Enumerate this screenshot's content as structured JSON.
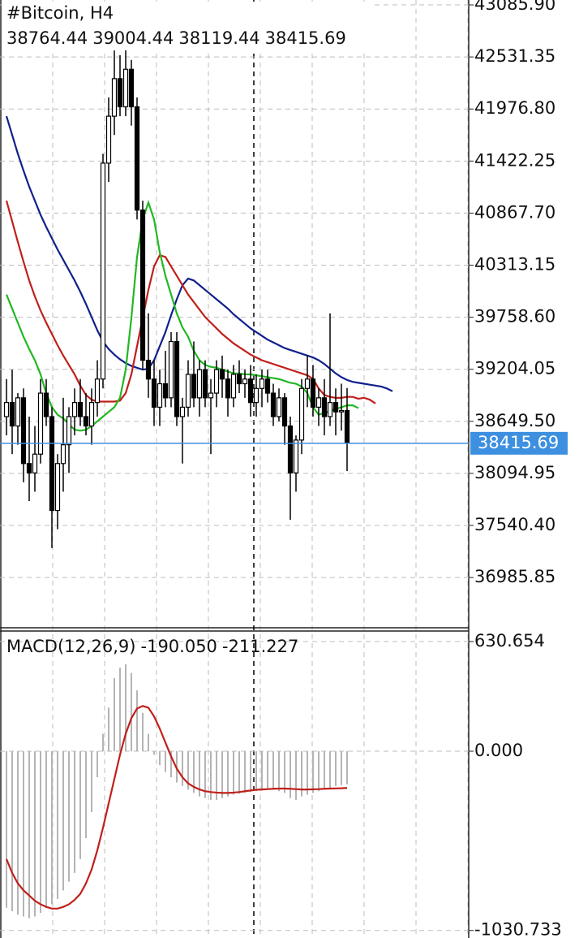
{
  "chart_data": [
    {
      "type": "candlestick",
      "title": "#Bitcoin, H4",
      "ohlc_text": [
        "38764.44",
        "39004.44",
        "38119.44",
        "38415.69"
      ],
      "ylim": [
        36433,
        43138
      ],
      "yticks": [
        {
          "value": 43085.9,
          "label": "43085.90"
        },
        42531.35,
        {
          "value": 41976.8,
          "label": "41976.80"
        },
        41422.25,
        {
          "value": 40867.7,
          "label": "40867.70"
        },
        40313.15,
        {
          "value": 39758.6,
          "label": "39758.60"
        },
        39204.05,
        {
          "value": 38649.5,
          "label": "38649.50"
        },
        38094.95,
        {
          "value": 37540.4,
          "label": "37540.40"
        },
        36985.85
      ],
      "grid": true,
      "last_price": 38415.69,
      "last_price_color": "#3d8fe0",
      "open": [
        38700,
        38850,
        38600,
        38900,
        38200,
        38100,
        38300,
        38950,
        38700,
        37700,
        38200,
        38400,
        38700,
        38850,
        38700,
        38600,
        38850,
        39100,
        41400,
        41900,
        42300,
        42000,
        42400,
        42000,
        40900,
        39300,
        39100,
        38800,
        39050,
        38900,
        39500,
        38700,
        38800,
        39150,
        38900,
        39200,
        38900,
        38950,
        39200,
        39100,
        38900,
        39150,
        39050,
        39100,
        38850,
        39000,
        39100,
        38950,
        38700,
        38900,
        38600,
        38100,
        38450,
        39000,
        39100,
        38800,
        38900,
        38700,
        38850,
        38750,
        38764.44
      ],
      "high": [
        39100,
        39200,
        38950,
        39000,
        38700,
        38600,
        39100,
        39100,
        38800,
        38300,
        38900,
        38800,
        39000,
        39100,
        38950,
        39000,
        39300,
        41500,
        42100,
        42600,
        42550,
        42650,
        42500,
        42100,
        41000,
        39800,
        39300,
        39200,
        39400,
        39600,
        39600,
        38900,
        39300,
        39500,
        39300,
        39300,
        39100,
        39300,
        39350,
        39200,
        39250,
        39300,
        39200,
        39250,
        39150,
        39200,
        39200,
        39050,
        39000,
        38950,
        38700,
        38500,
        39100,
        39350,
        39250,
        39000,
        39100,
        39800,
        39000,
        39050,
        39004.44
      ],
      "low": [
        38500,
        38300,
        38400,
        38000,
        37800,
        37900,
        38200,
        38600,
        37300,
        37500,
        37900,
        38100,
        38500,
        38600,
        38500,
        38400,
        38700,
        39000,
        41200,
        41700,
        41900,
        41900,
        41800,
        40800,
        39200,
        38900,
        38600,
        38600,
        38800,
        38800,
        38600,
        38200,
        38700,
        38800,
        38700,
        38800,
        38300,
        38800,
        38900,
        38700,
        38800,
        38950,
        38900,
        38700,
        38700,
        38800,
        38850,
        38600,
        38650,
        38400,
        37600,
        37900,
        38300,
        38800,
        38700,
        38600,
        38500,
        38600,
        38500,
        38550,
        38119.44
      ],
      "close": [
        38850,
        38600,
        38900,
        38200,
        38100,
        38300,
        38950,
        38700,
        37700,
        38200,
        38400,
        38700,
        38850,
        38700,
        38600,
        38850,
        39100,
        41400,
        41900,
        42300,
        42000,
        42400,
        42000,
        40900,
        39300,
        39100,
        38800,
        39050,
        38900,
        39500,
        38700,
        38800,
        39150,
        38900,
        39200,
        38900,
        38950,
        39200,
        39100,
        38900,
        39150,
        39050,
        39100,
        38850,
        39000,
        39100,
        38950,
        38700,
        38900,
        38600,
        38100,
        38450,
        39000,
        39100,
        38800,
        38900,
        38700,
        38850,
        38750,
        38764,
        38415.69
      ],
      "series": [
        {
          "color": "#10208c",
          "values": [
            41900,
            41700,
            41500,
            41320,
            41150,
            41000,
            40850,
            40720,
            40600,
            40480,
            40370,
            40260,
            40150,
            40030,
            39900,
            39760,
            39620,
            39500,
            39420,
            39360,
            39310,
            39270,
            39240,
            39220,
            39200,
            39210,
            39300,
            39450,
            39600,
            39780,
            39950,
            40100,
            40170,
            40150,
            40100,
            40050,
            40000,
            39950,
            39900,
            39850,
            39790,
            39740,
            39690,
            39640,
            39600,
            39560,
            39520,
            39490,
            39460,
            39430,
            39410,
            39390,
            39370,
            39350,
            39330,
            39300,
            39260,
            39210,
            39160,
            39120,
            39090,
            39070,
            39060,
            39050,
            39040,
            39030,
            39020,
            39000,
            38970
          ]
        },
        {
          "color": "#c0201a",
          "values": [
            41000,
            40780,
            40560,
            40350,
            40150,
            39980,
            39830,
            39700,
            39580,
            39460,
            39350,
            39250,
            39150,
            39030,
            38930,
            38880,
            38860,
            38860,
            38860,
            38860,
            38870,
            38950,
            39150,
            39450,
            39750,
            40050,
            40300,
            40420,
            40400,
            40300,
            40200,
            40100,
            40000,
            39920,
            39840,
            39760,
            39700,
            39640,
            39580,
            39530,
            39480,
            39440,
            39400,
            39360,
            39330,
            39300,
            39280,
            39260,
            39240,
            39220,
            39200,
            39180,
            39160,
            39140,
            39100,
            39000,
            38930,
            38910,
            38900,
            38900,
            38910,
            38910,
            38890,
            38900,
            38880,
            38840
          ]
        },
        {
          "color": "#22b822",
          "values": [
            40000,
            39850,
            39700,
            39550,
            39420,
            39300,
            39150,
            38950,
            38800,
            38720,
            38680,
            38620,
            38560,
            38550,
            38560,
            38600,
            38650,
            38700,
            38750,
            38800,
            38900,
            39200,
            39750,
            40400,
            40800,
            40980,
            40800,
            40450,
            40200,
            40000,
            39800,
            39650,
            39550,
            39400,
            39300,
            39250,
            39230,
            39220,
            39200,
            39180,
            39160,
            39160,
            39150,
            39150,
            39140,
            39130,
            39120,
            39110,
            39100,
            39080,
            39060,
            39050,
            39020,
            38950,
            38800,
            38720,
            38740,
            38760,
            38780,
            38800,
            38820,
            38820,
            38790
          ]
        }
      ]
    },
    {
      "type": "macd",
      "title": "MACD(12,26,9)",
      "value_texts": [
        "-190.050",
        "-211.227"
      ],
      "ylim": [
        -1074,
        691
      ],
      "yticks": [
        630.654,
        {
          "value": 0,
          "label": "0.000"
        },
        -1030.733
      ],
      "grid": true,
      "histogram": {
        "color": "#b4b4b4",
        "values": [
          -900,
          -920,
          -940,
          -950,
          -960,
          -950,
          -930,
          -900,
          -880,
          -850,
          -800,
          -750,
          -700,
          -620,
          -500,
          -350,
          -150,
          100,
          250,
          420,
          480,
          500,
          450,
          350,
          220,
          100,
          -20,
          -80,
          -120,
          -150,
          -180,
          -200,
          -220,
          -240,
          -260,
          -270,
          -280,
          -280,
          -270,
          -260,
          -250,
          -245,
          -240,
          -235,
          -230,
          -225,
          -220,
          -220,
          -230,
          -240,
          -270,
          -280,
          -260,
          -250,
          -240,
          -230,
          -220,
          -210,
          -200,
          -195,
          -190.05
        ]
      },
      "signal": {
        "color": "#c0201a",
        "values": [
          -620,
          -700,
          -760,
          -800,
          -830,
          -860,
          -880,
          -895,
          -905,
          -905,
          -895,
          -880,
          -855,
          -820,
          -760,
          -680,
          -570,
          -440,
          -300,
          -160,
          -20,
          100,
          190,
          245,
          260,
          250,
          200,
          130,
          50,
          -30,
          -100,
          -150,
          -185,
          -205,
          -220,
          -230,
          -235,
          -238,
          -240,
          -240,
          -238,
          -235,
          -230,
          -226,
          -222,
          -220,
          -218,
          -216,
          -215,
          -215,
          -216,
          -218,
          -220,
          -220,
          -219,
          -218,
          -216,
          -215,
          -214,
          -213,
          -211.227
        ]
      }
    }
  ]
}
